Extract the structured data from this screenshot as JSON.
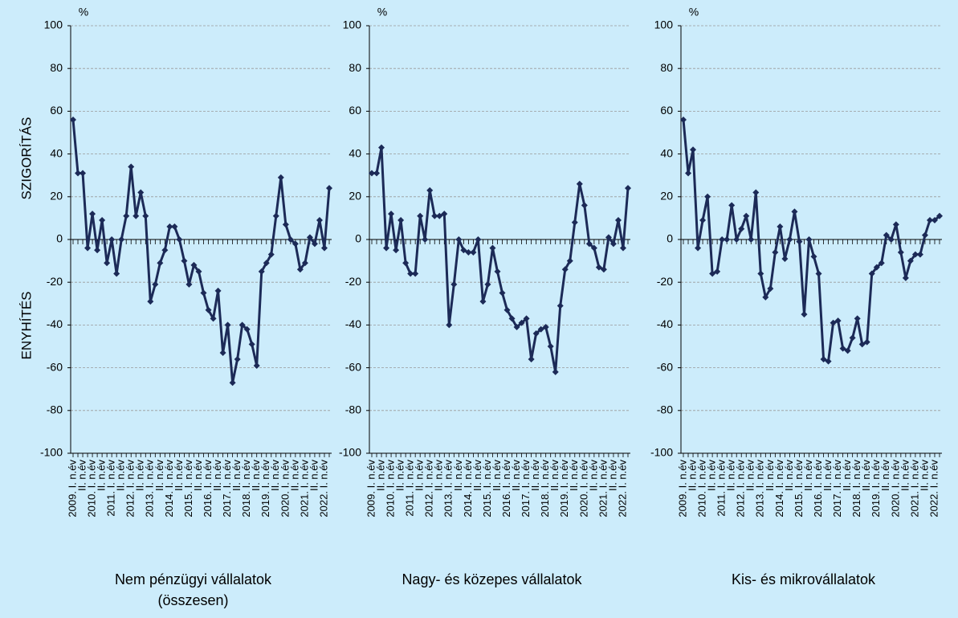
{
  "y_label_top": "SZIGORÍTÁS",
  "y_label_bottom": "ENYHÍTÉS",
  "chart_data": [
    {
      "type": "line",
      "unit": "%",
      "title": [
        "Nem pénzügyi vállalatok",
        "(összesen)"
      ],
      "ylim": [
        -100,
        100
      ],
      "yticks": [
        -100,
        -80,
        -60,
        -40,
        -20,
        0,
        20,
        40,
        60,
        80,
        100
      ],
      "grid": true,
      "categories": [
        "2009. I. n.év",
        null,
        "II. n.év",
        null,
        "2010. I. n.év",
        null,
        "II. n.év",
        null,
        "2011. I. n.év",
        null,
        "II. n.év",
        null,
        "2012. I. n.év",
        null,
        "II. n.év",
        null,
        "2013. I. n.év",
        null,
        "II. n.év",
        null,
        "2014. I. n.év",
        null,
        "II. n.év",
        null,
        "2015. I. n.év",
        null,
        "II. n.év",
        null,
        "2016. I. n.év",
        null,
        "II. n.év",
        null,
        "2017. I. n.év",
        null,
        "II. n.év",
        null,
        "2018. I. n.év",
        null,
        "II. n.év",
        null,
        "2019. I. n.év",
        null,
        "II. n.év",
        null,
        "2020. I. n.év",
        null,
        "II. n.év",
        null,
        "2021. I. n.év",
        null,
        "II. n.év",
        null,
        "2022. I. n.év",
        null
      ],
      "color": "#1c2a57",
      "values": [
        56,
        31,
        31,
        -4,
        12,
        -5,
        9,
        -11,
        0,
        -16,
        0,
        11,
        34,
        11,
        22,
        11,
        -29,
        -21,
        -11,
        -5,
        6,
        6,
        0,
        -10,
        -21,
        -12,
        -15,
        -25,
        -33,
        -37,
        -24,
        -53,
        -40,
        -67,
        -56,
        -40,
        -42,
        -49,
        -59,
        -15,
        -11,
        -7,
        11,
        29,
        7,
        0,
        -2,
        -14,
        -11,
        1,
        -2,
        9,
        -4,
        24
      ]
    },
    {
      "type": "line",
      "unit": "%",
      "title": [
        "Nagy- és közepes vállalatok"
      ],
      "ylim": [
        -100,
        100
      ],
      "yticks": [
        -100,
        -80,
        -60,
        -40,
        -20,
        0,
        20,
        40,
        60,
        80,
        100
      ],
      "grid": true,
      "categories": [
        "2009. I. n.év",
        null,
        "II. n.év",
        null,
        "2010. I. n.év",
        null,
        "II. n.év",
        null,
        "2011. I. n.év",
        null,
        "II. n.év",
        null,
        "2012. I. n.év",
        null,
        "II. n.év",
        null,
        "2013. I. n.év",
        null,
        "II. n.év",
        null,
        "2014. I. n.év",
        null,
        "II. n.év",
        null,
        "2015. I. n.év",
        null,
        "II. n.év",
        null,
        "2016. I. n.év",
        null,
        "II. n.év",
        null,
        "2017. I. n.év",
        null,
        "II. n.év",
        null,
        "2018. I. n.év",
        null,
        "II. n.év",
        null,
        "2019. I. n.év",
        null,
        "II. n.év",
        null,
        "2020. I. n.év",
        null,
        "II. n.év",
        null,
        "2021. I. n.év",
        null,
        "II. n.év",
        null,
        "2022. I. n.év",
        null
      ],
      "color": "#1c2a57",
      "values": [
        31,
        31,
        43,
        -4,
        12,
        -5,
        9,
        -11,
        -16,
        -16,
        11,
        0,
        23,
        11,
        11,
        12,
        -40,
        -21,
        0,
        -5,
        -6,
        -6,
        0,
        -29,
        -21,
        -4,
        -15,
        -25,
        -33,
        -37,
        -41,
        -39,
        -37,
        -56,
        -44,
        -42,
        -41,
        -50,
        -62,
        -31,
        -14,
        -10,
        8,
        26,
        16,
        -2,
        -4,
        -13,
        -14,
        1,
        -2,
        9,
        -4,
        24
      ]
    },
    {
      "type": "line",
      "unit": "%",
      "title": [
        "Kis- és mikrovállalatok"
      ],
      "ylim": [
        -100,
        100
      ],
      "yticks": [
        -100,
        -80,
        -60,
        -40,
        -20,
        0,
        20,
        40,
        60,
        80,
        100
      ],
      "grid": true,
      "categories": [
        "2009. I. n.év",
        null,
        "II. n.év",
        null,
        "2010. I. n.év",
        null,
        "II. n.év",
        null,
        "2011. I. n.év",
        null,
        "II. n.év",
        null,
        "2012. I. n.év",
        null,
        "II. n.év",
        null,
        "2013. I. n.év",
        null,
        "II. n.év",
        null,
        "2014. I. n.év",
        null,
        "II. n.év",
        null,
        "2015. I. n.év",
        null,
        "II. n.év",
        null,
        "2016. I. n.év",
        null,
        "II. n.év",
        null,
        "2017. I. n.év",
        null,
        "II. n.év",
        null,
        "2018. I. n.év",
        null,
        "II. n.év",
        null,
        "2019. I. n.év",
        null,
        "II. n.év",
        null,
        "2020. I. n.év",
        null,
        "II. n.év",
        null,
        "2021. I. n.év",
        null,
        "II. n.év",
        null,
        "2022. I. n.év",
        null
      ],
      "color": "#1c2a57",
      "values": [
        56,
        31,
        42,
        -4,
        9,
        20,
        -16,
        -15,
        0,
        0,
        16,
        0,
        5,
        11,
        0,
        22,
        -16,
        -27,
        -23,
        -6,
        6,
        -9,
        0,
        13,
        -1,
        -35,
        0,
        -8,
        -16,
        -56,
        -57,
        -39,
        -38,
        -51,
        -52,
        -46,
        -37,
        -49,
        -48,
        -16,
        -13,
        -11,
        2,
        0,
        7,
        -6,
        -18,
        -10,
        -7,
        -7,
        2,
        9,
        9,
        11
      ]
    }
  ]
}
